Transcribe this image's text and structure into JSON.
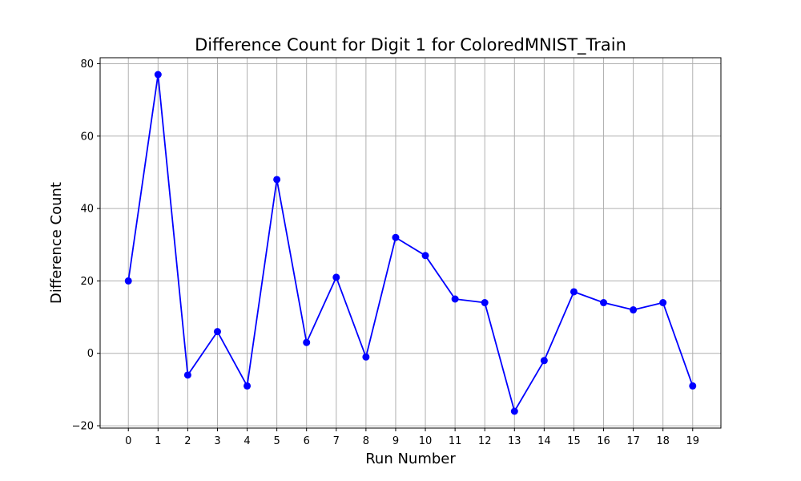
{
  "chart_data": {
    "type": "line",
    "title": "Difference Count for Digit 1 for ColoredMNIST_Train",
    "xlabel": "Run Number",
    "ylabel": "Difference Count",
    "x": [
      0,
      1,
      2,
      3,
      4,
      5,
      6,
      7,
      8,
      9,
      10,
      11,
      12,
      13,
      14,
      15,
      16,
      17,
      18,
      19
    ],
    "xticks": [
      "0",
      "1",
      "2",
      "3",
      "4",
      "5",
      "6",
      "7",
      "8",
      "9",
      "10",
      "11",
      "12",
      "13",
      "14",
      "15",
      "16",
      "17",
      "18",
      "19"
    ],
    "yticks": [
      -20,
      0,
      20,
      40,
      60,
      80
    ],
    "xlim": [
      -0.95,
      19.95
    ],
    "ylim": [
      -20.65,
      81.65
    ],
    "grid": true,
    "series": [
      {
        "values": [
          20,
          77,
          -6,
          6,
          -9,
          48,
          3,
          21,
          -1,
          32,
          27,
          15,
          14,
          -16,
          -2,
          17,
          14,
          12,
          14,
          -9
        ],
        "color": "#0000ff",
        "marker": "circle"
      }
    ]
  }
}
